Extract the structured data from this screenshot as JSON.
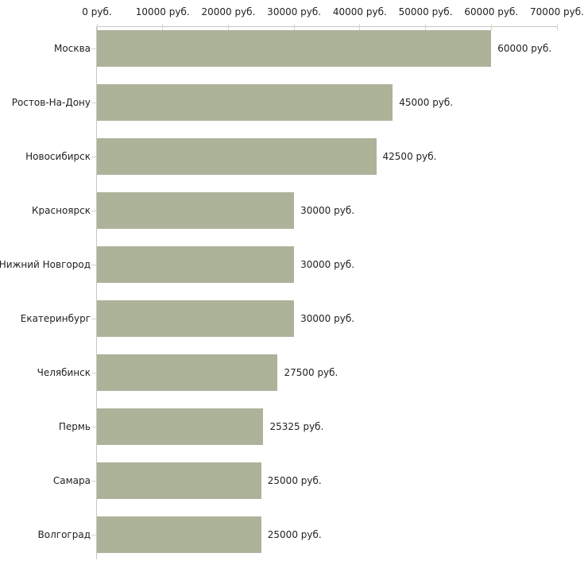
{
  "chart_data": {
    "type": "bar",
    "orientation": "horizontal",
    "title": "",
    "xlabel": "",
    "ylabel": "",
    "grid": false,
    "legend": null,
    "categories": [
      "Москва",
      "Ростов-На-Дону",
      "Новосибирск",
      "Красноярск",
      "Нижний Новгород",
      "Екатеринбург",
      "Челябинск",
      "Пермь",
      "Самара",
      "Волгоград"
    ],
    "values": [
      60000,
      45000,
      42500,
      30000,
      30000,
      30000,
      27500,
      25325,
      25000,
      25000
    ],
    "value_labels": [
      "60000 руб.",
      "45000 руб.",
      "42500 руб.",
      "30000 руб.",
      "30000 руб.",
      "30000 руб.",
      "27500 руб.",
      "25325 руб.",
      "25000 руб.",
      "25000 руб."
    ],
    "xlim": [
      0,
      70000
    ],
    "x_ticks": [
      0,
      10000,
      20000,
      30000,
      40000,
      50000,
      60000,
      70000
    ],
    "x_tick_labels": [
      "0 руб.",
      "10000 руб.",
      "20000 руб.",
      "30000 руб.",
      "40000 руб.",
      "50000 руб.",
      "60000 руб.",
      "70000 руб."
    ],
    "colors": {
      "bar": "#acb399",
      "axis_line": "#c6c6c6",
      "tick": "#d5d9ba",
      "text": "#222222",
      "background": "#ffffff"
    }
  }
}
